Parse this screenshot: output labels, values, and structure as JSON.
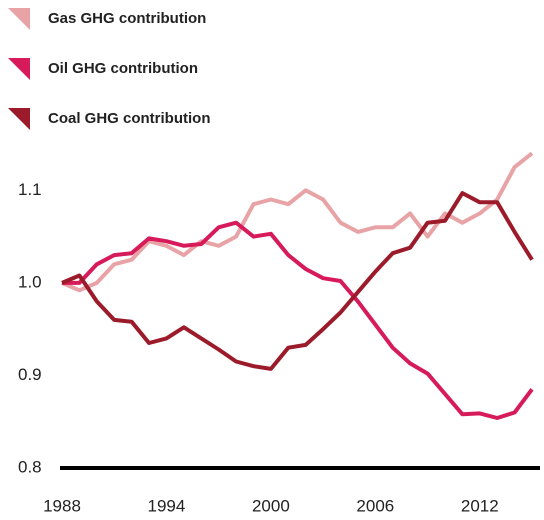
{
  "chart_data": {
    "type": "line",
    "x": [
      1988,
      1989,
      1990,
      1991,
      1992,
      1993,
      1994,
      1995,
      1996,
      1997,
      1998,
      1999,
      2000,
      2001,
      2002,
      2003,
      2004,
      2005,
      2006,
      2007,
      2008,
      2009,
      2010,
      2011,
      2012,
      2013,
      2014,
      2015
    ],
    "series": [
      {
        "name": "Gas GHG contribution",
        "color": "#e8a3a6",
        "values": [
          1.0,
          0.992,
          1.0,
          1.02,
          1.025,
          1.045,
          1.04,
          1.03,
          1.045,
          1.04,
          1.05,
          1.085,
          1.09,
          1.085,
          1.1,
          1.09,
          1.065,
          1.055,
          1.06,
          1.06,
          1.075,
          1.05,
          1.075,
          1.065,
          1.075,
          1.09,
          1.125,
          1.14
        ]
      },
      {
        "name": "Oil GHG contribution",
        "color": "#d71a5a",
        "values": [
          1.0,
          1.0,
          1.02,
          1.03,
          1.032,
          1.048,
          1.045,
          1.04,
          1.042,
          1.06,
          1.065,
          1.05,
          1.053,
          1.03,
          1.015,
          1.005,
          1.002,
          0.98,
          0.955,
          0.93,
          0.913,
          0.902,
          0.88,
          0.858,
          0.859,
          0.854,
          0.86,
          0.885
        ]
      },
      {
        "name": "Coal GHG contribution",
        "color": "#9b1b2a",
        "values": [
          1.0,
          1.008,
          0.98,
          0.96,
          0.958,
          0.935,
          0.94,
          0.952,
          0.94,
          0.928,
          0.915,
          0.91,
          0.907,
          0.93,
          0.933,
          0.95,
          0.968,
          0.99,
          1.012,
          1.032,
          1.038,
          1.065,
          1.067,
          1.097,
          1.087,
          1.087,
          1.055,
          1.025
        ]
      }
    ],
    "xlim": [
      1988,
      2015
    ],
    "xticks": [
      1988,
      1994,
      2000,
      2006,
      2012
    ],
    "ylim": [
      0.8,
      1.15
    ],
    "yticks": [
      0.8,
      0.9,
      {
        "value": 1.0,
        "label": "1.0"
      },
      1.1
    ]
  }
}
